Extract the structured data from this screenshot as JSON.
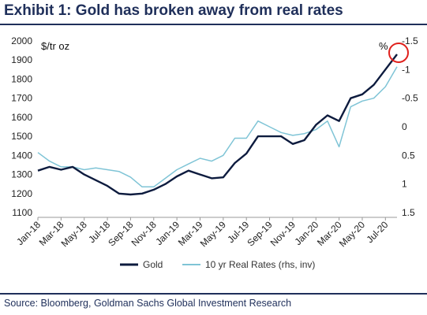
{
  "title": "Exhibit 1: Gold has broken away from real rates",
  "source": "Source: Bloomberg, Goldman Sachs Global Investment Research",
  "chart_data": {
    "type": "line",
    "left_unit": "$/tr oz",
    "right_unit": "%",
    "ylim_left": [
      1100,
      2000
    ],
    "yticks_left": [
      1100,
      1200,
      1300,
      1400,
      1500,
      1600,
      1700,
      1800,
      1900,
      2000
    ],
    "ylim_right": [
      1.5,
      -1.5
    ],
    "yticks_right": [
      "1.5",
      "1",
      "0.5",
      "0",
      "-0.5",
      "-1",
      "-1.5"
    ],
    "ytick_values_right": [
      1.5,
      1.0,
      0.5,
      0.0,
      -0.5,
      -1.0,
      -1.5
    ],
    "right_axis_inverted": true,
    "grid": false,
    "legend_position": "bottom",
    "x_tick_labels": [
      "Jan-18",
      "Mar-18",
      "May-18",
      "Jul-18",
      "Sep-18",
      "Nov-18",
      "Jan-19",
      "Mar-19",
      "May-19",
      "Jul-19",
      "Sep-19",
      "Nov-19",
      "Jan-20",
      "Mar-20",
      "May-20",
      "Jul-20"
    ],
    "x": [
      "Jan-18",
      "Feb-18",
      "Mar-18",
      "Apr-18",
      "May-18",
      "Jun-18",
      "Jul-18",
      "Aug-18",
      "Sep-18",
      "Oct-18",
      "Nov-18",
      "Dec-18",
      "Jan-19",
      "Feb-19",
      "Mar-19",
      "Apr-19",
      "May-19",
      "Jun-19",
      "Jul-19",
      "Aug-19",
      "Sep-19",
      "Oct-19",
      "Nov-19",
      "Dec-19",
      "Jan-20",
      "Feb-20",
      "Mar-20",
      "Apr-20",
      "May-20",
      "Jun-20",
      "Jul-20",
      "Aug-20"
    ],
    "series": [
      {
        "name": "Gold",
        "axis": "left",
        "color": "#0d1b3e",
        "values": [
          1320,
          1340,
          1325,
          1340,
          1300,
          1270,
          1240,
          1200,
          1195,
          1200,
          1220,
          1250,
          1290,
          1320,
          1300,
          1280,
          1285,
          1360,
          1410,
          1500,
          1500,
          1500,
          1460,
          1480,
          1560,
          1610,
          1580,
          1700,
          1720,
          1770,
          1850,
          1930
        ]
      },
      {
        "name": "10 yr Real Rates (rhs, inv)",
        "axis": "right",
        "color": "#7fc4d6",
        "values": [
          0.45,
          0.6,
          0.7,
          0.7,
          0.75,
          0.72,
          0.75,
          0.78,
          0.88,
          1.05,
          1.05,
          0.9,
          0.75,
          0.65,
          0.55,
          0.6,
          0.5,
          0.2,
          0.2,
          -0.1,
          0.0,
          0.1,
          0.15,
          0.12,
          0.05,
          -0.1,
          0.35,
          -0.35,
          -0.45,
          -0.5,
          -0.7,
          -1.05
        ]
      }
    ],
    "annotation": "red circle around the latest Gold peak"
  }
}
